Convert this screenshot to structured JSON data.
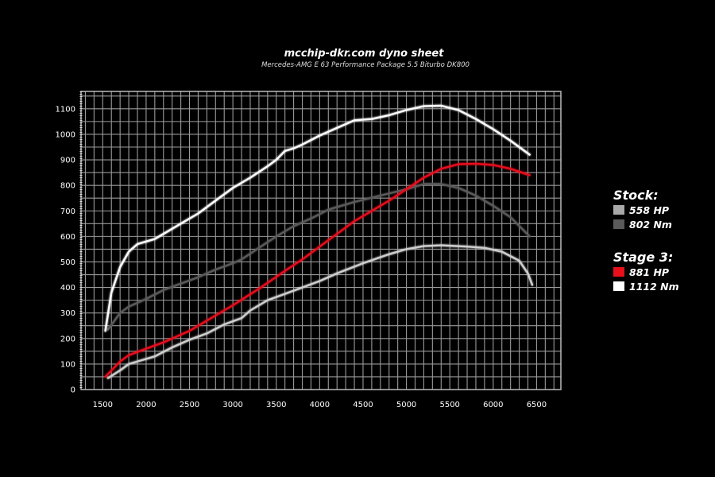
{
  "chart_data": {
    "type": "line",
    "title": "mcchip-dkr.com dyno sheet",
    "subtitle": "Mercedes-AMG E 63 Performance Package 5.5 Biturbo DK800",
    "xlabel": "",
    "ylabel": "",
    "xlim": [
      1250,
      6780
    ],
    "ylim": [
      0,
      1168
    ],
    "xticks": [
      1500,
      2000,
      2500,
      3000,
      3500,
      4000,
      4500,
      5000,
      5500,
      6000,
      6500
    ],
    "yticks": [
      0,
      100,
      200,
      300,
      400,
      500,
      600,
      700,
      800,
      900,
      1000,
      1100
    ],
    "grid": true,
    "legend_position": "right",
    "series": [
      {
        "name": "Stock torque",
        "color": "#5a5a5a",
        "points": [
          [
            1560,
            235
          ],
          [
            1700,
            300
          ],
          [
            1800,
            325
          ],
          [
            2000,
            355
          ],
          [
            2200,
            390
          ],
          [
            2400,
            415
          ],
          [
            2600,
            440
          ],
          [
            2800,
            470
          ],
          [
            3000,
            495
          ],
          [
            3100,
            510
          ],
          [
            3300,
            555
          ],
          [
            3500,
            600
          ],
          [
            3700,
            640
          ],
          [
            3900,
            670
          ],
          [
            4100,
            705
          ],
          [
            4400,
            735
          ],
          [
            4700,
            760
          ],
          [
            5000,
            785
          ],
          [
            5200,
            805
          ],
          [
            5400,
            805
          ],
          [
            5600,
            790
          ],
          [
            5800,
            760
          ],
          [
            6000,
            720
          ],
          [
            6200,
            675
          ],
          [
            6420,
            600
          ]
        ]
      },
      {
        "name": "Stock power",
        "color": "#cfcfcf",
        "points": [
          [
            1560,
            45
          ],
          [
            1700,
            75
          ],
          [
            1800,
            100
          ],
          [
            2000,
            120
          ],
          [
            2100,
            130
          ],
          [
            2300,
            165
          ],
          [
            2500,
            195
          ],
          [
            2700,
            220
          ],
          [
            2900,
            255
          ],
          [
            3100,
            280
          ],
          [
            3200,
            310
          ],
          [
            3400,
            350
          ],
          [
            3600,
            375
          ],
          [
            3800,
            400
          ],
          [
            4000,
            425
          ],
          [
            4200,
            455
          ],
          [
            4500,
            495
          ],
          [
            4800,
            530
          ],
          [
            5000,
            550
          ],
          [
            5200,
            562
          ],
          [
            5400,
            565
          ],
          [
            5700,
            560
          ],
          [
            5900,
            555
          ],
          [
            6100,
            540
          ],
          [
            6300,
            505
          ],
          [
            6400,
            455
          ],
          [
            6450,
            410
          ]
        ]
      },
      {
        "name": "Stage 3 power",
        "color": "#e8101a",
        "points": [
          [
            1530,
            50
          ],
          [
            1700,
            110
          ],
          [
            1800,
            135
          ],
          [
            2000,
            160
          ],
          [
            2200,
            185
          ],
          [
            2500,
            230
          ],
          [
            2800,
            290
          ],
          [
            3000,
            330
          ],
          [
            3300,
            395
          ],
          [
            3600,
            465
          ],
          [
            3800,
            510
          ],
          [
            4000,
            560
          ],
          [
            4200,
            610
          ],
          [
            4400,
            660
          ],
          [
            4600,
            700
          ],
          [
            4800,
            740
          ],
          [
            5000,
            785
          ],
          [
            5200,
            830
          ],
          [
            5400,
            865
          ],
          [
            5600,
            883
          ],
          [
            5800,
            885
          ],
          [
            6000,
            880
          ],
          [
            6200,
            865
          ],
          [
            6420,
            840
          ]
        ]
      },
      {
        "name": "Stage 3 torque",
        "color": "#ffffff",
        "points": [
          [
            1530,
            230
          ],
          [
            1600,
            380
          ],
          [
            1700,
            480
          ],
          [
            1800,
            540
          ],
          [
            1900,
            570
          ],
          [
            2000,
            580
          ],
          [
            2100,
            590
          ],
          [
            2200,
            610
          ],
          [
            2400,
            650
          ],
          [
            2600,
            690
          ],
          [
            2800,
            740
          ],
          [
            3000,
            790
          ],
          [
            3200,
            830
          ],
          [
            3400,
            875
          ],
          [
            3500,
            900
          ],
          [
            3600,
            935
          ],
          [
            3700,
            945
          ],
          [
            3800,
            960
          ],
          [
            4000,
            995
          ],
          [
            4200,
            1025
          ],
          [
            4400,
            1055
          ],
          [
            4600,
            1060
          ],
          [
            4800,
            1075
          ],
          [
            5000,
            1095
          ],
          [
            5200,
            1110
          ],
          [
            5400,
            1112
          ],
          [
            5600,
            1095
          ],
          [
            5800,
            1060
          ],
          [
            6000,
            1020
          ],
          [
            6200,
            975
          ],
          [
            6420,
            920
          ]
        ]
      }
    ]
  },
  "legend": {
    "stock_heading": "Stock:",
    "stock_hp": "558 HP",
    "stock_hp_color": "#a8a8a8",
    "stock_nm": "802 Nm",
    "stock_nm_color": "#5a5a5a",
    "stage_heading": "Stage 3:",
    "stage_hp": "881 HP",
    "stage_hp_color": "#e8101a",
    "stage_nm": "1112 Nm",
    "stage_nm_color": "#ffffff"
  }
}
